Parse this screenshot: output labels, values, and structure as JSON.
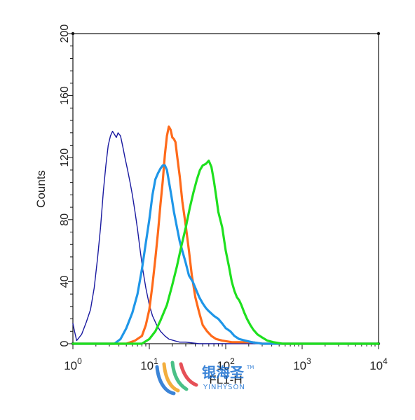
{
  "chart_data": {
    "type": "line",
    "title": "",
    "xlabel": "FL1-H",
    "ylabel": "Counts",
    "xscale": "log",
    "xlim": [
      1,
      10000
    ],
    "ylim": [
      0,
      200
    ],
    "x_ticks": [
      {
        "base": "10",
        "exp": "0",
        "value": 1
      },
      {
        "base": "10",
        "exp": "1",
        "value": 10
      },
      {
        "base": "10",
        "exp": "2",
        "value": 100
      },
      {
        "base": "10",
        "exp": "3",
        "value": 1000
      },
      {
        "base": "10",
        "exp": "4",
        "value": 10000
      }
    ],
    "y_ticks": [
      "0",
      "40",
      "80",
      "120",
      "160",
      "200"
    ],
    "y_tick_values": [
      0,
      40,
      80,
      120,
      160,
      200
    ],
    "grid": false,
    "legend": "none",
    "series": [
      {
        "color": "#1a1aa0",
        "stroke": "thin",
        "points": [
          [
            1,
            13
          ],
          [
            1.05,
            8
          ],
          [
            1.12,
            2
          ],
          [
            1.3,
            6
          ],
          [
            1.5,
            14
          ],
          [
            1.7,
            22
          ],
          [
            1.9,
            36
          ],
          [
            2.1,
            55
          ],
          [
            2.3,
            75
          ],
          [
            2.5,
            98
          ],
          [
            2.7,
            115
          ],
          [
            2.9,
            128
          ],
          [
            3.1,
            134
          ],
          [
            3.3,
            137
          ],
          [
            3.5,
            135
          ],
          [
            3.7,
            133
          ],
          [
            3.9,
            136
          ],
          [
            4.2,
            134
          ],
          [
            4.5,
            127
          ],
          [
            4.8,
            120
          ],
          [
            5.2,
            112
          ],
          [
            5.6,
            104
          ],
          [
            6.0,
            96
          ],
          [
            6.5,
            85
          ],
          [
            7.0,
            74
          ],
          [
            7.6,
            60
          ],
          [
            8.2,
            48
          ],
          [
            9.0,
            36
          ],
          [
            10,
            25
          ],
          [
            11,
            18
          ],
          [
            12.5,
            12
          ],
          [
            14,
            8
          ],
          [
            16,
            5
          ],
          [
            18,
            3
          ],
          [
            21,
            2
          ],
          [
            25,
            1
          ],
          [
            30,
            1
          ],
          [
            45,
            0
          ],
          [
            100,
            0
          ],
          [
            10000,
            0
          ]
        ]
      },
      {
        "color": "#ff6a1a",
        "stroke": "thick",
        "points": [
          [
            1,
            0
          ],
          [
            5,
            0
          ],
          [
            6.5,
            2
          ],
          [
            8,
            5
          ],
          [
            9,
            12
          ],
          [
            10,
            22
          ],
          [
            11,
            38
          ],
          [
            12,
            55
          ],
          [
            13,
            72
          ],
          [
            14,
            90
          ],
          [
            15,
            105
          ],
          [
            16,
            122
          ],
          [
            17,
            134
          ],
          [
            18,
            140
          ],
          [
            19,
            138
          ],
          [
            20,
            133
          ],
          [
            21,
            132
          ],
          [
            22,
            130
          ],
          [
            23,
            122
          ],
          [
            25,
            108
          ],
          [
            27,
            92
          ],
          [
            30,
            76
          ],
          [
            33,
            60
          ],
          [
            36,
            44
          ],
          [
            40,
            30
          ],
          [
            45,
            20
          ],
          [
            50,
            12
          ],
          [
            57,
            8
          ],
          [
            65,
            5
          ],
          [
            75,
            3
          ],
          [
            90,
            2
          ],
          [
            120,
            1
          ],
          [
            160,
            1
          ],
          [
            220,
            1
          ],
          [
            300,
            0
          ],
          [
            10000,
            0
          ]
        ]
      },
      {
        "color": "#1e96e8",
        "stroke": "thick",
        "points": [
          [
            1,
            0
          ],
          [
            3.5,
            0
          ],
          [
            4.2,
            3
          ],
          [
            5,
            10
          ],
          [
            6,
            20
          ],
          [
            7,
            32
          ],
          [
            8,
            48
          ],
          [
            9,
            65
          ],
          [
            10,
            80
          ],
          [
            11,
            96
          ],
          [
            12,
            106
          ],
          [
            13,
            110
          ],
          [
            14,
            113
          ],
          [
            15,
            115
          ],
          [
            16,
            115
          ],
          [
            17,
            112
          ],
          [
            18,
            105
          ],
          [
            19.5,
            95
          ],
          [
            21,
            85
          ],
          [
            23,
            75
          ],
          [
            25,
            66
          ],
          [
            27,
            60
          ],
          [
            30,
            52
          ],
          [
            33,
            44
          ],
          [
            37,
            40
          ],
          [
            40,
            36
          ],
          [
            45,
            30
          ],
          [
            50,
            26
          ],
          [
            55,
            23
          ],
          [
            60,
            21
          ],
          [
            70,
            18
          ],
          [
            80,
            16
          ],
          [
            90,
            13
          ],
          [
            100,
            10
          ],
          [
            115,
            8
          ],
          [
            130,
            5
          ],
          [
            150,
            3
          ],
          [
            180,
            2
          ],
          [
            220,
            1
          ],
          [
            300,
            0
          ],
          [
            10000,
            0
          ]
        ]
      },
      {
        "color": "#1ee01e",
        "stroke": "thick",
        "points": [
          [
            1,
            0
          ],
          [
            8,
            0
          ],
          [
            10,
            3
          ],
          [
            12,
            8
          ],
          [
            14,
            15
          ],
          [
            17,
            25
          ],
          [
            20,
            38
          ],
          [
            23,
            50
          ],
          [
            26,
            62
          ],
          [
            30,
            75
          ],
          [
            34,
            88
          ],
          [
            38,
            98
          ],
          [
            42,
            106
          ],
          [
            46,
            112
          ],
          [
            50,
            115
          ],
          [
            55,
            116
          ],
          [
            60,
            118
          ],
          [
            65,
            114
          ],
          [
            70,
            105
          ],
          [
            75,
            95
          ],
          [
            80,
            85
          ],
          [
            90,
            75
          ],
          [
            100,
            60
          ],
          [
            110,
            50
          ],
          [
            120,
            40
          ],
          [
            130,
            34
          ],
          [
            140,
            30
          ],
          [
            150,
            28
          ],
          [
            160,
            25
          ],
          [
            175,
            20
          ],
          [
            190,
            16
          ],
          [
            210,
            12
          ],
          [
            230,
            9
          ],
          [
            260,
            6
          ],
          [
            300,
            4
          ],
          [
            350,
            2
          ],
          [
            420,
            1
          ],
          [
            550,
            0
          ],
          [
            10000,
            0
          ]
        ]
      }
    ]
  },
  "watermark": {
    "brand_cn": "银海圣",
    "brand_en": "YINHYSON",
    "tm": "TM",
    "colors": [
      "#1a6fd1",
      "#f2a11c",
      "#2bb673",
      "#e2323a"
    ]
  }
}
